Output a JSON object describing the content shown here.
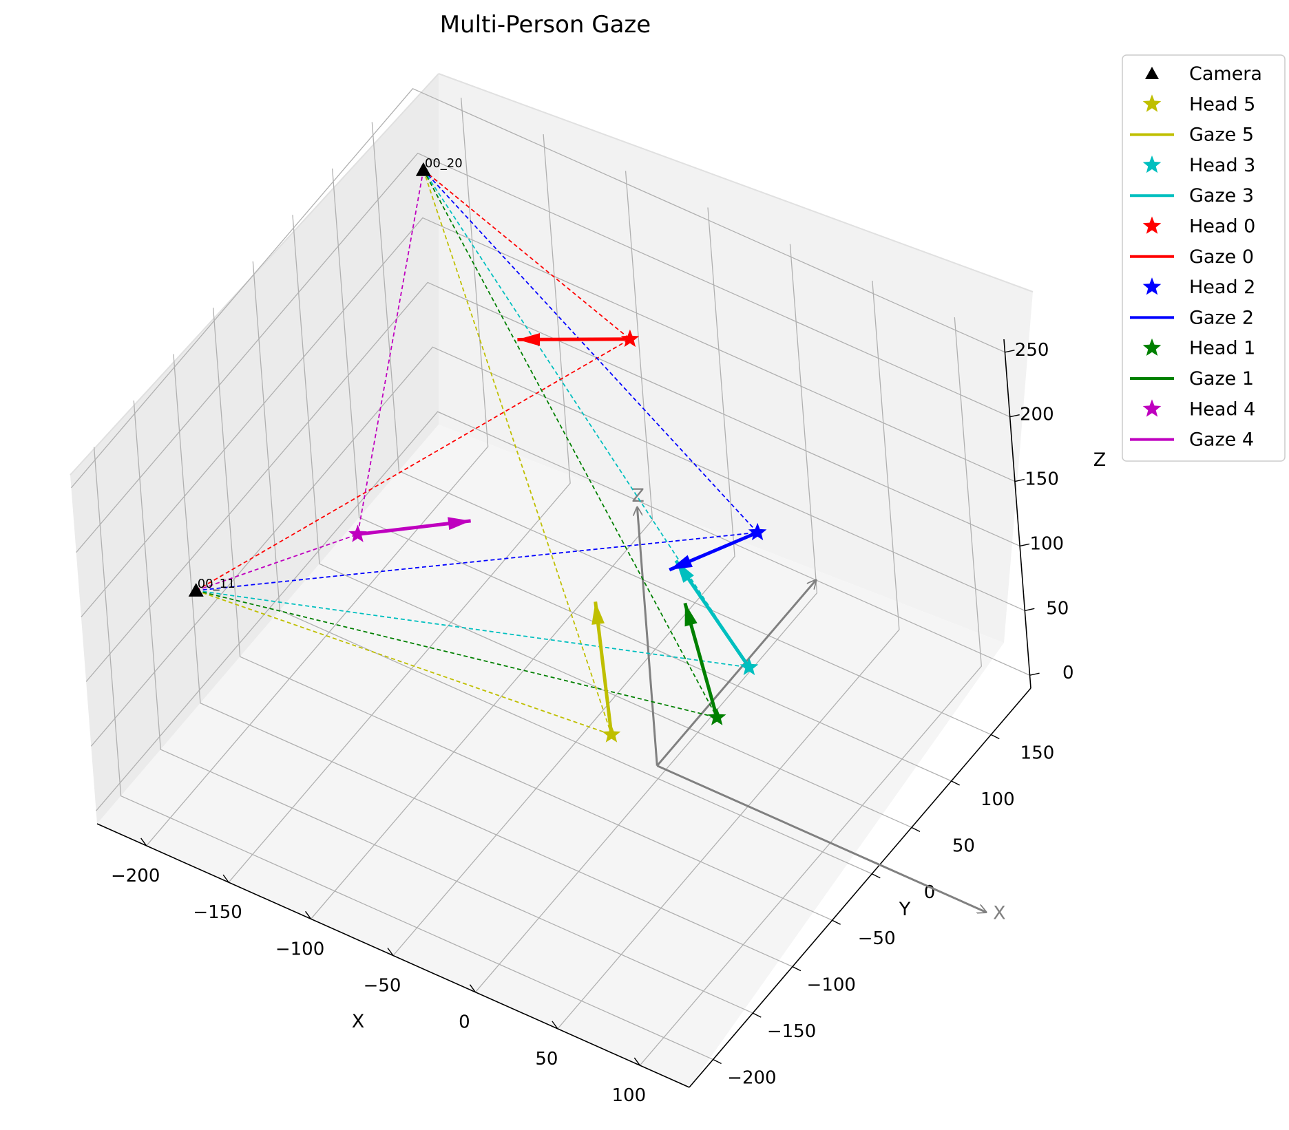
{
  "chart_data": {
    "type": "scatter3d",
    "title": "Multi-Person Gaze",
    "xlabel": "X",
    "ylabel": "Y",
    "zlabel": "Z",
    "xlim": [
      -230,
      130
    ],
    "ylim": [
      -230,
      200
    ],
    "zlim": [
      -10,
      260
    ],
    "x_ticks": [
      "−200",
      "−150",
      "−100",
      "−50",
      "0",
      "50",
      "100"
    ],
    "y_ticks": [
      "−200",
      "−150",
      "−100",
      "−50",
      "0",
      "50",
      "100",
      "150"
    ],
    "z_ticks": [
      "0",
      "50",
      "100",
      "150",
      "200",
      "250"
    ],
    "grid": true,
    "legend_position": "upper right, outside",
    "cameras": [
      {
        "name": "00_20",
        "x": -200,
        "y": 150,
        "z": 240
      },
      {
        "name": "00_11",
        "x": -200,
        "y": -150,
        "z": 130
      }
    ],
    "origin_axes": {
      "color": "#808080",
      "x_label": "X",
      "z_label": "Z",
      "origin": [
        0,
        0,
        0
      ],
      "x_end": [
        200,
        0,
        0
      ],
      "y_end": [
        0,
        200,
        0
      ],
      "z_end": [
        0,
        0,
        200
      ]
    },
    "series": [
      {
        "name": "Head 5",
        "gaze_name": "Gaze 5",
        "color": "#bfbf00",
        "head": [
          0,
          -50,
          60
        ],
        "gaze_end": [
          -20,
          -20,
          130
        ]
      },
      {
        "name": "Head 3",
        "gaze_name": "Gaze 3",
        "color": "#00bfbf",
        "head": [
          30,
          60,
          50
        ],
        "gaze_end": [
          0,
          40,
          130
        ]
      },
      {
        "name": "Head 0",
        "gaze_name": "Gaze 0",
        "color": "#ff0000",
        "head": [
          -40,
          80,
          250
        ],
        "gaze_end": [
          -100,
          60,
          230
        ]
      },
      {
        "name": "Head 2",
        "gaze_name": "Gaze 2",
        "color": "#0000ff",
        "head": [
          20,
          100,
          120
        ],
        "gaze_end": [
          -10,
          50,
          110
        ]
      },
      {
        "name": "Head 1",
        "gaze_name": "Gaze 1",
        "color": "#008000",
        "head": [
          40,
          0,
          60
        ],
        "gaze_end": [
          20,
          10,
          130
        ]
      },
      {
        "name": "Head 4",
        "gaze_name": "Gaze 4",
        "color": "#bf00bf",
        "head": [
          -150,
          -50,
          130
        ],
        "gaze_end": [
          -100,
          -10,
          140
        ]
      }
    ],
    "legend": [
      {
        "label": "Camera",
        "marker": "triangle",
        "color": "#000000"
      },
      {
        "label": "Head 5",
        "marker": "star",
        "color": "#bfbf00"
      },
      {
        "label": "Gaze 5",
        "marker": "line",
        "color": "#bfbf00"
      },
      {
        "label": "Head 3",
        "marker": "star",
        "color": "#00bfbf"
      },
      {
        "label": "Gaze 3",
        "marker": "line",
        "color": "#00bfbf"
      },
      {
        "label": "Head 0",
        "marker": "star",
        "color": "#ff0000"
      },
      {
        "label": "Gaze 0",
        "marker": "line",
        "color": "#ff0000"
      },
      {
        "label": "Head 2",
        "marker": "star",
        "color": "#0000ff"
      },
      {
        "label": "Gaze 2",
        "marker": "line",
        "color": "#0000ff"
      },
      {
        "label": "Head 1",
        "marker": "star",
        "color": "#008000"
      },
      {
        "label": "Gaze 1",
        "marker": "line",
        "color": "#008000"
      },
      {
        "label": "Head 4",
        "marker": "star",
        "color": "#bf00bf"
      },
      {
        "label": "Gaze 4",
        "marker": "line",
        "color": "#bf00bf"
      }
    ]
  }
}
